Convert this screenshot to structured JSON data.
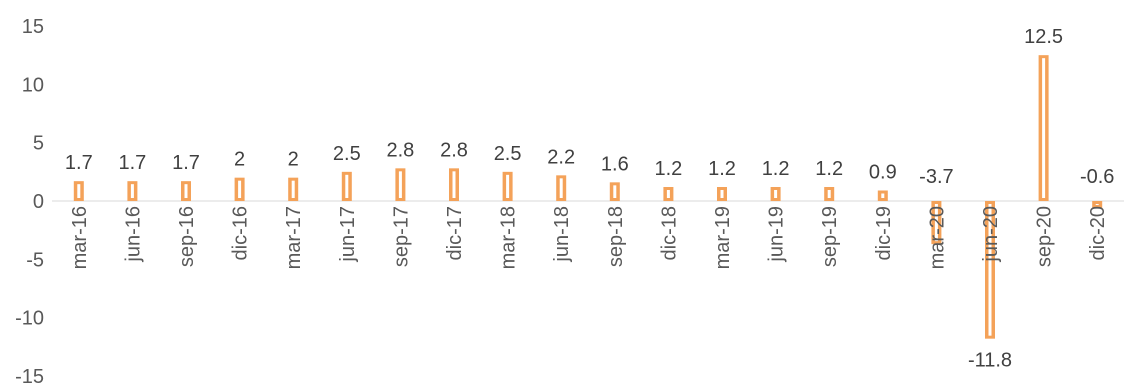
{
  "chart_data": {
    "type": "bar",
    "title": "",
    "xlabel": "",
    "ylabel": "",
    "ylim": [
      -15,
      15
    ],
    "yticks": [
      15,
      10,
      5,
      0,
      -5,
      -10,
      -15
    ],
    "grid": false,
    "legend": "none",
    "bar_color": "#F4A259",
    "bar_inner_color": "#FFFFFF",
    "categories": [
      "mar-16",
      "jun-16",
      "sep-16",
      "dic-16",
      "mar-17",
      "jun-17",
      "sep-17",
      "dic-17",
      "mar-18",
      "jun-18",
      "sep-18",
      "dic-18",
      "mar-19",
      "jun-19",
      "sep-19",
      "dic-19",
      "mar-20",
      "jun-20",
      "sep-20",
      "dic-20"
    ],
    "values": [
      1.7,
      1.7,
      1.7,
      2,
      2,
      2.5,
      2.8,
      2.8,
      2.5,
      2.2,
      1.6,
      1.2,
      1.2,
      1.2,
      1.2,
      0.9,
      -3.7,
      -11.8,
      12.5,
      -0.6
    ]
  }
}
